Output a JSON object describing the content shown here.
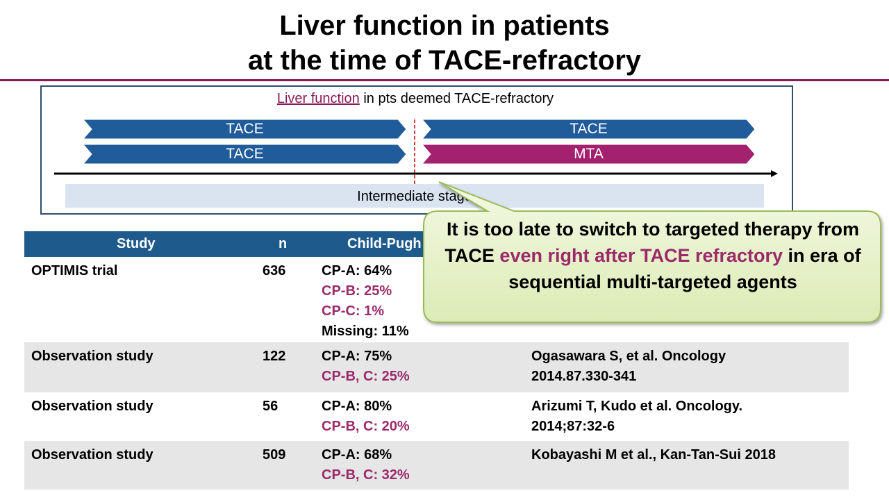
{
  "title": [
    "Liver function in patients",
    "at the time of  TACE-refractory"
  ],
  "diagram": {
    "heading_link": "Liver function",
    "heading_rest": " in pts deemed TACE-refractory",
    "arrows": [
      {
        "text": "TACE",
        "color": "#1f5c99"
      },
      {
        "text": "TACE",
        "color": "#1f5c99"
      },
      {
        "text": "TACE",
        "color": "#1f5c99"
      },
      {
        "text": "MTA",
        "color": "#a3216f"
      }
    ],
    "stage": "Intermediate stage"
  },
  "callout": {
    "parts": [
      {
        "text": "It is too late to switch to targeted therapy from TACE ",
        "color": "#000000"
      },
      {
        "text": "even right after TACE refractory",
        "color": "#9b2a6b"
      },
      {
        "text": " in era of sequential multi-targeted agents",
        "color": "#000000"
      }
    ]
  },
  "table": {
    "header": [
      "Study",
      "n",
      "Child-Pugh"
    ],
    "rows": [
      {
        "study": "OPTIMIS trial",
        "n": "636",
        "child_pugh": [
          {
            "text": "CP-A: 64%",
            "color": "#000000"
          },
          {
            "text": "CP-B: 25%",
            "color": "#9b2a6b"
          },
          {
            "text": "CP-C: 1%",
            "color": "#9b2a6b"
          },
          {
            "text": "Missing: 11%",
            "color": "#000000"
          }
        ],
        "reference": []
      },
      {
        "study": "Observation study",
        "n": "122",
        "child_pugh": [
          {
            "text": "CP-A: 75%",
            "color": "#000000"
          },
          {
            "text": "CP-B, C: 25%",
            "color": "#9b2a6b"
          }
        ],
        "reference": [
          "Ogasawara S, et al. Oncology",
          "2014.87.330-341"
        ]
      },
      {
        "study": "Observation study",
        "n": "56",
        "child_pugh": [
          {
            "text": "CP-A: 80%",
            "color": "#000000"
          },
          {
            "text": "CP-B, C: 20%",
            "color": "#9b2a6b"
          }
        ],
        "reference": [
          "Arizumi T, Kudo et al. Oncology.",
          "2014;87:32-6"
        ]
      },
      {
        "study": "Observation study",
        "n": "509",
        "child_pugh": [
          {
            "text": "CP-A: 68%",
            "color": "#000000"
          },
          {
            "text": "CP-B, C: 32%",
            "color": "#9b2a6b"
          }
        ],
        "reference": [
          "Kobayashi M et al., Kan-Tan-Sui 2018"
        ]
      }
    ]
  }
}
